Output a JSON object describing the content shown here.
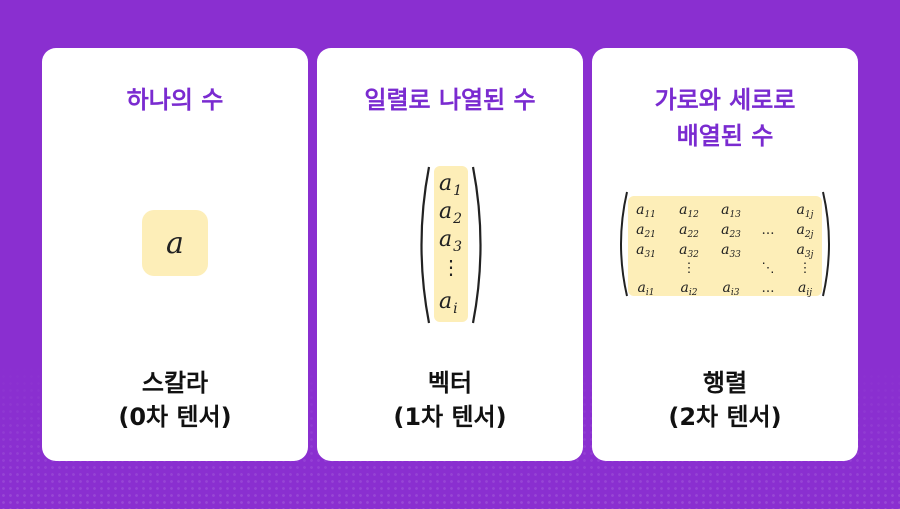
{
  "cards": [
    {
      "title": [
        "하나의 수"
      ],
      "symbol": "a",
      "label": [
        "스칼라",
        "(0차 텐서)"
      ]
    },
    {
      "title": [
        "일렬로 나열된 수"
      ],
      "vector": [
        "a",
        "a",
        "a",
        "⋮",
        "a"
      ],
      "vector_sub": [
        "1",
        "2",
        "3",
        "",
        "i"
      ],
      "label": [
        "벡터",
        "(1차 텐서)"
      ]
    },
    {
      "title": [
        "가로와 세로로",
        "배열된 수"
      ],
      "matrix": {
        "rows": [
          [
            "a11",
            "a12",
            "a13",
            "",
            "a1j"
          ],
          [
            "a21",
            "a22",
            "a23",
            "…",
            "a2j"
          ],
          [
            "a31",
            "a32",
            "a33",
            "",
            "a3j"
          ],
          [
            "",
            "⋮",
            "",
            "⋱",
            "⋮"
          ],
          [
            "ai1",
            "ai2",
            "ai3",
            "…",
            "aij"
          ]
        ]
      },
      "label": [
        "행렬",
        "(2차 텐서)"
      ]
    }
  ],
  "colors": {
    "background": "#8a2fd0",
    "card": "#ffffff",
    "title": "#7a2bd0",
    "highlight": "#fdeeb8",
    "label": "#111111"
  }
}
